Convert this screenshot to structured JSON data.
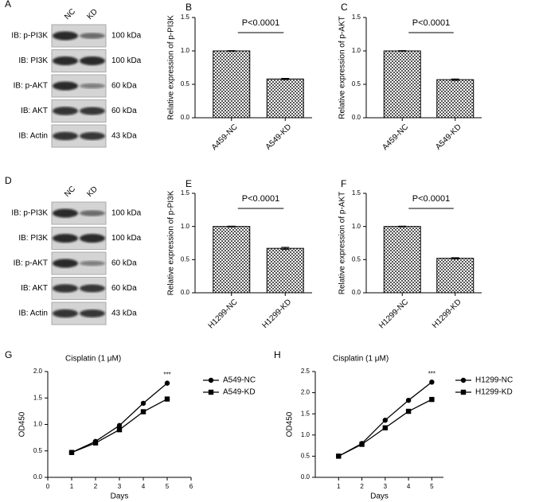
{
  "blots": [
    {
      "panel": "A",
      "columns": [
        "NC",
        "KD"
      ],
      "rows": [
        {
          "label": "IB: p-PI3K",
          "size": "100 kDa"
        },
        {
          "label": "IB: PI3K",
          "size": "100 kDa"
        },
        {
          "label": "IB: p-AKT",
          "size": "60 kDa"
        },
        {
          "label": "IB: AKT",
          "size": "60 kDa"
        },
        {
          "label": "IB: Actin",
          "size": "43 kDa"
        }
      ]
    },
    {
      "panel": "D",
      "columns": [
        "NC",
        "KD"
      ],
      "rows": [
        {
          "label": "IB: p-PI3K",
          "size": "100 kDa"
        },
        {
          "label": "IB: PI3K",
          "size": "100 kDa"
        },
        {
          "label": "IB: p-AKT",
          "size": "60 kDa"
        },
        {
          "label": "IB: AKT",
          "size": "60 kDa"
        },
        {
          "label": "IB: Actin",
          "size": "43 kDa"
        }
      ]
    }
  ],
  "chart_data": [
    {
      "type": "bar",
      "panel": "B",
      "ylabel": "Relative expression of p-PI3K",
      "annotation": "P<0.0001",
      "categories": [
        "A459-NC",
        "A549-KD"
      ],
      "values": [
        1.0,
        0.58
      ],
      "errors": [
        0.005,
        0.01
      ],
      "ylim": [
        0,
        1.5
      ],
      "yticks": [
        {
          "value": 0,
          "label": "0.0"
        },
        0.5,
        {
          "value": 1,
          "label": "1.0"
        },
        1.5
      ]
    },
    {
      "type": "bar",
      "panel": "C",
      "ylabel": "Relative expression of p-AKT",
      "annotation": "P<0.0001",
      "categories": [
        "A459-NC",
        "A549-KD"
      ],
      "values": [
        1.0,
        0.57
      ],
      "errors": [
        0.005,
        0.01
      ],
      "ylim": [
        0,
        1.5
      ],
      "yticks": [
        {
          "value": 0,
          "label": "0.0"
        },
        0.5,
        {
          "value": 1,
          "label": "1.0"
        },
        1.5
      ]
    },
    {
      "type": "bar",
      "panel": "E",
      "ylabel": "Relative expression of p-PI3K",
      "annotation": "P<0.0001",
      "categories": [
        "H1299-NC",
        "H1299-KD"
      ],
      "values": [
        1.0,
        0.67
      ],
      "errors": [
        0.005,
        0.015
      ],
      "ylim": [
        0,
        1.5
      ],
      "yticks": [
        {
          "value": 0,
          "label": "0.0"
        },
        0.5,
        {
          "value": 1,
          "label": "1.0"
        },
        1.5
      ]
    },
    {
      "type": "bar",
      "panel": "F",
      "ylabel": "Relative expression of p-AKT",
      "annotation": "P<0.0001",
      "categories": [
        "H1299-NC",
        "H1299-KD"
      ],
      "values": [
        1.0,
        0.52
      ],
      "errors": [
        0.005,
        0.01
      ],
      "ylim": [
        0,
        1.5
      ],
      "yticks": [
        {
          "value": 0,
          "label": "0.0"
        },
        0.5,
        {
          "value": 1,
          "label": "1.0"
        },
        1.5
      ]
    },
    {
      "type": "line",
      "panel": "G",
      "title": "Cisplatin (1 μM)",
      "xlabel": "Days",
      "ylabel": "OD450",
      "annotation": "***",
      "legend": "right",
      "x": [
        1,
        2,
        3,
        4,
        5
      ],
      "series": [
        {
          "name": "A549-NC",
          "color": "#000000",
          "marker": "circle",
          "values": [
            0.47,
            0.68,
            0.98,
            1.4,
            1.78
          ]
        },
        {
          "name": "A549-KD",
          "color": "#000000",
          "marker": "square",
          "values": [
            0.47,
            0.65,
            0.9,
            1.24,
            1.48
          ]
        }
      ],
      "xlim": [
        0,
        6
      ],
      "xticks": [
        0,
        1,
        2,
        3,
        4,
        5,
        6
      ],
      "ylim": [
        0,
        2
      ],
      "yticks": [
        {
          "value": 0,
          "label": "0.0"
        },
        0.5,
        {
          "value": 1,
          "label": "1.0"
        },
        1.5,
        {
          "value": 2,
          "label": "2.0"
        }
      ]
    },
    {
      "type": "line",
      "panel": "H",
      "title": "Cisplatin (1 μM)",
      "xlabel": "Days",
      "ylabel": "OD450",
      "annotation": "***",
      "legend": "right",
      "x": [
        1,
        2,
        3,
        4,
        5
      ],
      "series": [
        {
          "name": "H1299-NC",
          "color": "#000000",
          "marker": "circle",
          "values": [
            0.5,
            0.8,
            1.35,
            1.82,
            2.25
          ]
        },
        {
          "name": "H1299-KD",
          "color": "#000000",
          "marker": "square",
          "values": [
            0.5,
            0.78,
            1.17,
            1.56,
            1.84
          ]
        }
      ],
      "xlim": [
        0,
        5.5
      ],
      "xticks": [
        1,
        2,
        3,
        4,
        5
      ],
      "ylim": [
        0,
        2.5
      ],
      "yticks": [
        {
          "value": 0,
          "label": "0.0"
        },
        0.5,
        {
          "value": 1,
          "label": "1.0"
        },
        1.5,
        {
          "value": 2,
          "label": "2.0"
        },
        2.5
      ]
    }
  ]
}
